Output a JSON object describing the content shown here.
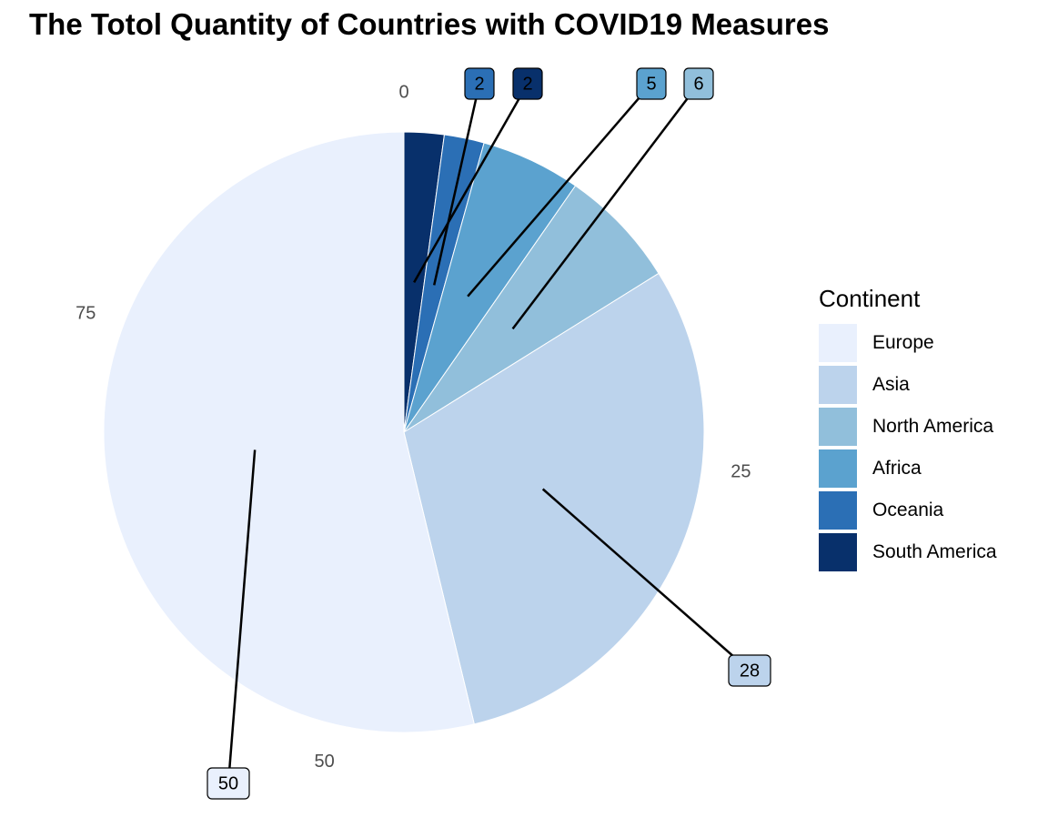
{
  "chart_data": {
    "type": "pie",
    "title": "The Totol Quantity of Countries with COVID19 Measures",
    "legend_title": "Continent",
    "legend_position": "right",
    "slices": [
      {
        "name": "South America",
        "value": 2,
        "color": "#08306b"
      },
      {
        "name": "Oceania",
        "value": 2,
        "color": "#2b6fb5"
      },
      {
        "name": "Africa",
        "value": 5,
        "color": "#5ba2cf"
      },
      {
        "name": "North America",
        "value": 6,
        "color": "#91bfdb"
      },
      {
        "name": "Asia",
        "value": 28,
        "color": "#bcd3ec"
      },
      {
        "name": "Europe",
        "value": 50,
        "color": "#e9f0fd"
      }
    ],
    "legend_order": [
      "Europe",
      "Asia",
      "North America",
      "Africa",
      "Oceania",
      "South America"
    ],
    "angle_ticks": [
      "0",
      "25",
      "50",
      "75"
    ]
  }
}
